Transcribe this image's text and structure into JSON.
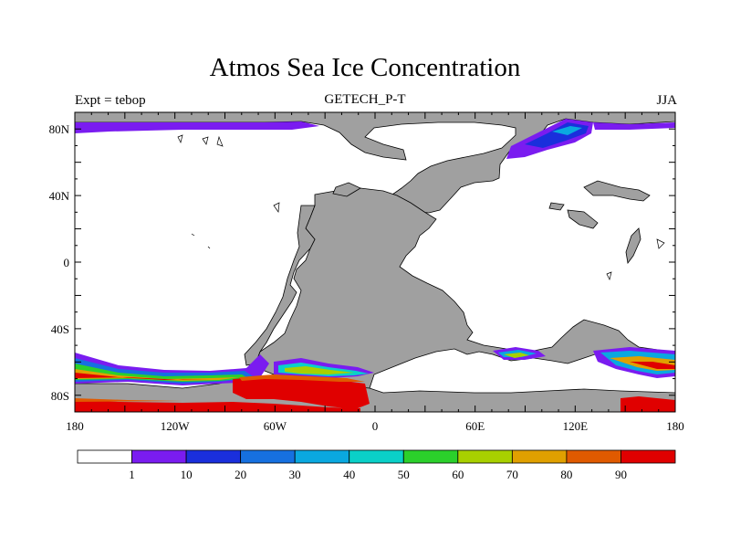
{
  "title": "Atmos Sea Ice Concentration",
  "subtitle_left": "Expt = tebop",
  "subtitle_center": "GETECH_P-T",
  "subtitle_right": "JJA",
  "map": {
    "projection": "cylindrical-equidistant",
    "lon_range": [
      -180,
      180
    ],
    "lat_range": [
      -90,
      90
    ],
    "land_color": "#a0a0a0",
    "ocean_color": "#ffffff",
    "lat_ticks": [
      {
        "value": 80,
        "label": "80N"
      },
      {
        "value": 40,
        "label": "40N"
      },
      {
        "value": 0,
        "label": "0"
      },
      {
        "value": -40,
        "label": "40S"
      },
      {
        "value": -80,
        "label": "80S"
      }
    ],
    "lon_ticks": [
      {
        "value": -180,
        "label": "180"
      },
      {
        "value": -120,
        "label": "120W"
      },
      {
        "value": -60,
        "label": "60W"
      },
      {
        "value": 0,
        "label": "0"
      },
      {
        "value": 60,
        "label": "60E"
      },
      {
        "value": 120,
        "label": "120E"
      },
      {
        "value": 180,
        "label": "180"
      }
    ]
  },
  "colorbar": {
    "colors": [
      "#ffffff",
      "#7a1cf0",
      "#1a2fdc",
      "#1670e0",
      "#0aa8e0",
      "#0ad0c8",
      "#2bd02b",
      "#a8d000",
      "#e0a000",
      "#e05a00",
      "#e00000"
    ],
    "labels": [
      "1",
      "10",
      "20",
      "30",
      "40",
      "50",
      "60",
      "70",
      "80",
      "90"
    ]
  }
}
